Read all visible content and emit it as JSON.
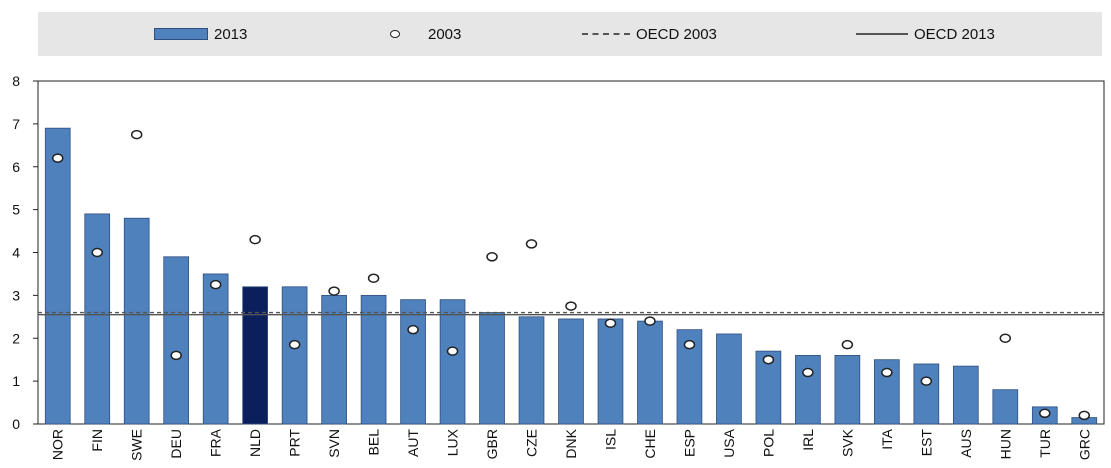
{
  "colors": {
    "bar": "#4f81bd",
    "bar_highlight": "#0b1f5c",
    "background": "#ffffff",
    "legend_background": "#e6e6e6"
  },
  "legend": {
    "bar_2013": "2013",
    "circle_2003": "2003",
    "oecd_2003": "OECD 2003",
    "oecd_2013": "OECD 2013"
  },
  "chart_data": {
    "type": "bar",
    "title": "",
    "xlabel": "",
    "ylabel": "",
    "ylim": [
      0,
      8
    ],
    "yticks": [
      0,
      1,
      2,
      3,
      4,
      5,
      6,
      7,
      8
    ],
    "legend_position": "top",
    "grid": false,
    "highlight_category": "NLD",
    "categories": [
      "NOR",
      "FIN",
      "SWE",
      "DEU",
      "FRA",
      "NLD",
      "PRT",
      "SVN",
      "BEL",
      "AUT",
      "LUX",
      "GBR",
      "CZE",
      "DNK",
      "ISL",
      "CHE",
      "ESP",
      "USA",
      "POL",
      "IRL",
      "SVK",
      "ITA",
      "EST",
      "AUS",
      "HUN",
      "TUR",
      "GRC"
    ],
    "series": [
      {
        "name": "2013",
        "type": "bar",
        "values": [
          6.9,
          4.9,
          4.8,
          3.9,
          3.5,
          3.2,
          3.2,
          3.0,
          3.0,
          2.9,
          2.9,
          2.6,
          2.5,
          2.45,
          2.45,
          2.4,
          2.2,
          2.1,
          1.7,
          1.6,
          1.6,
          1.5,
          1.4,
          1.35,
          0.8,
          0.4,
          0.15
        ]
      },
      {
        "name": "2003",
        "type": "marker",
        "values": [
          6.2,
          4.0,
          6.75,
          1.6,
          3.25,
          4.3,
          1.85,
          3.1,
          3.4,
          2.2,
          1.7,
          3.9,
          4.2,
          2.75,
          2.35,
          2.4,
          1.85,
          null,
          1.5,
          1.2,
          1.85,
          1.2,
          1.0,
          null,
          2.0,
          0.25,
          0.2
        ]
      }
    ],
    "reference_lines": [
      {
        "name": "OECD 2003",
        "value": 2.6,
        "style": "dashed"
      },
      {
        "name": "OECD 2013",
        "value": 2.55,
        "style": "solid"
      }
    ]
  }
}
